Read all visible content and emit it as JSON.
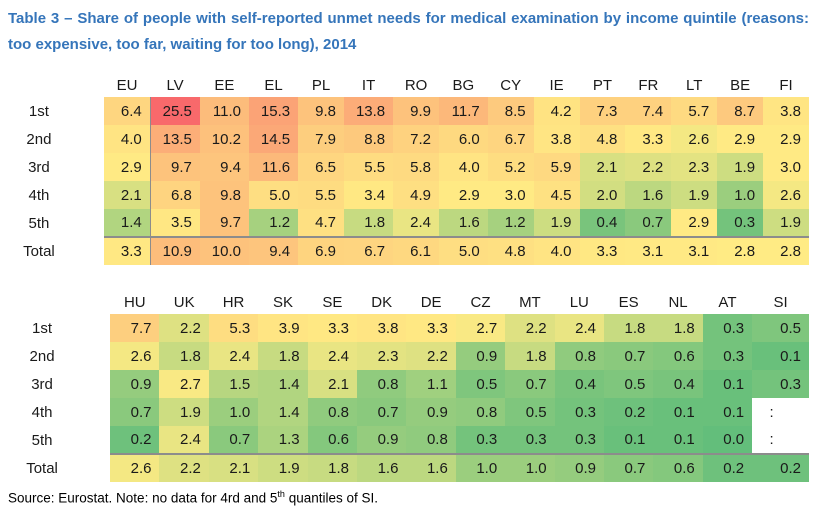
{
  "caption": "Table 3 – Share of people with self-reported unmet needs for medical examination by income quintile (reasons: too expensive, too far, waiting for too long), 2014",
  "footnote": {
    "before_sup": "Source: Eurostat. Note: no data for 4rd and 5",
    "sup": "th",
    "after_sup": " quantiles of SI."
  },
  "colors": {
    "caption_blue": "#3575BA",
    "scale_low_green": "#63BE7B",
    "scale_mid_yellow": "#FFEB84",
    "scale_high_red": "#F8696B",
    "separator_gray": "#8C8C8C",
    "text": "#1A1A1A"
  },
  "chart_data": {
    "type": "heatmap",
    "title": "Table 3 – Share of people with self-reported unmet needs for medical examination by income quintile (reasons: too expensive, too far, waiting for too long), 2014",
    "row_labels": [
      "1st",
      "2nd",
      "3rd",
      "4th",
      "5th",
      "Total"
    ],
    "no_data_symbol": ":",
    "legend": "none",
    "grid": "off",
    "color_scale": {
      "min_value": 0.0,
      "mid_value": 2.8,
      "max_value": 25.5,
      "min_color": "#63BE7B",
      "mid_color": "#FFEB84",
      "max_color": "#F8696B"
    },
    "blocks": [
      {
        "columns": [
          "EU",
          "LV",
          "EE",
          "EL",
          "PL",
          "IT",
          "RO",
          "BG",
          "CY",
          "IE",
          "PT",
          "FR",
          "LT",
          "BE",
          "FI"
        ],
        "first_column_separator": true,
        "values": [
          [
            6.4,
            25.5,
            11.0,
            15.3,
            9.8,
            13.8,
            9.9,
            11.7,
            8.5,
            4.2,
            7.3,
            7.4,
            5.7,
            8.7,
            3.8
          ],
          [
            4.0,
            13.5,
            10.2,
            14.5,
            7.9,
            8.8,
            7.2,
            6.0,
            6.7,
            3.8,
            4.8,
            3.3,
            2.6,
            2.9,
            2.9
          ],
          [
            2.9,
            9.7,
            9.4,
            11.6,
            6.5,
            5.5,
            5.8,
            4.0,
            5.2,
            5.9,
            2.1,
            2.2,
            2.3,
            1.9,
            3.0
          ],
          [
            2.1,
            6.8,
            9.8,
            5.0,
            5.5,
            3.4,
            4.9,
            2.9,
            3.0,
            4.5,
            2.0,
            1.6,
            1.9,
            1.0,
            2.6
          ],
          [
            1.4,
            3.5,
            9.7,
            1.2,
            4.7,
            1.8,
            2.4,
            1.6,
            1.2,
            1.9,
            0.4,
            0.7,
            2.9,
            0.3,
            1.9
          ],
          [
            3.3,
            10.9,
            10.0,
            9.4,
            6.9,
            6.7,
            6.1,
            5.0,
            4.8,
            4.0,
            3.3,
            3.1,
            3.1,
            2.8,
            2.8
          ]
        ]
      },
      {
        "columns": [
          "HU",
          "UK",
          "HR",
          "SK",
          "SE",
          "DK",
          "DE",
          "CZ",
          "MT",
          "LU",
          "ES",
          "NL",
          "AT",
          "SI"
        ],
        "first_column_separator": false,
        "values": [
          [
            7.7,
            2.2,
            5.3,
            3.9,
            3.3,
            3.8,
            3.3,
            2.7,
            2.2,
            2.4,
            1.8,
            1.8,
            0.3,
            0.5
          ],
          [
            2.6,
            1.8,
            2.4,
            1.8,
            2.4,
            2.3,
            2.2,
            0.9,
            1.8,
            0.8,
            0.7,
            0.6,
            0.3,
            0.1
          ],
          [
            0.9,
            2.7,
            1.5,
            1.4,
            2.1,
            0.8,
            1.1,
            0.5,
            0.7,
            0.4,
            0.5,
            0.4,
            0.1,
            0.3
          ],
          [
            0.7,
            1.9,
            1.0,
            1.4,
            0.8,
            0.7,
            0.9,
            0.8,
            0.5,
            0.3,
            0.2,
            0.1,
            0.1,
            null
          ],
          [
            0.2,
            2.4,
            0.7,
            1.3,
            0.6,
            0.9,
            0.8,
            0.3,
            0.3,
            0.3,
            0.1,
            0.1,
            0.0,
            null
          ],
          [
            2.6,
            2.2,
            2.1,
            1.9,
            1.8,
            1.6,
            1.6,
            1.0,
            1.0,
            0.9,
            0.7,
            0.6,
            0.2,
            0.2
          ]
        ]
      }
    ]
  }
}
